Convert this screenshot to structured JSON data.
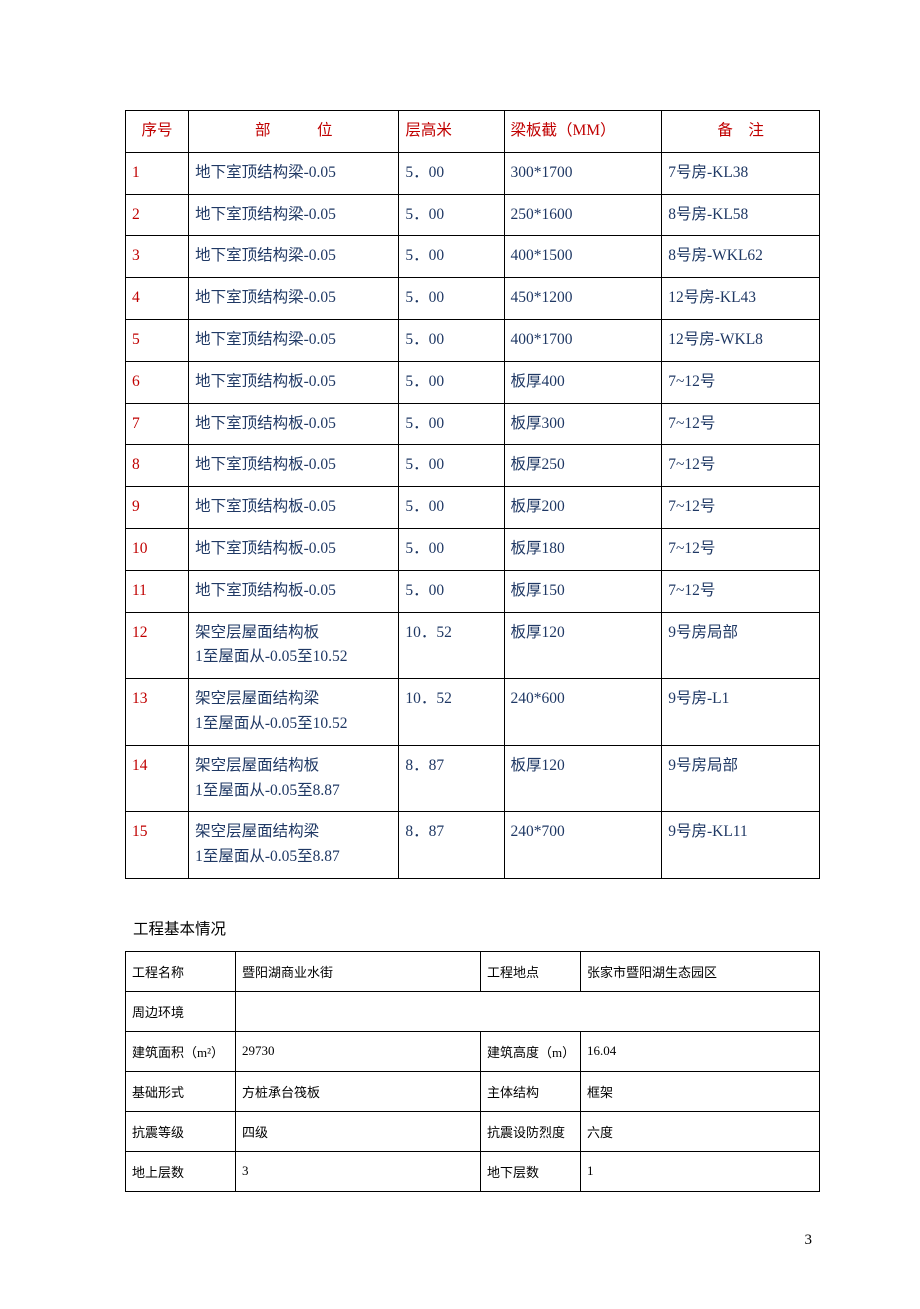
{
  "colors": {
    "header_red": "#c00000",
    "body_blue": "#1f3864",
    "border": "#000000",
    "text_black": "#000000",
    "background": "#ffffff"
  },
  "typography": {
    "main_table_fontsize": 15.5,
    "info_table_fontsize": 13,
    "font_family": "SimSun"
  },
  "mainTable": {
    "headers": {
      "seq": "序号",
      "position": "部　　　位",
      "height": "层高米",
      "section": "梁板截（MM）",
      "note": "备　注"
    },
    "rows": [
      {
        "seq": "1",
        "position": "地下室顶结构梁-0.05",
        "height": "5．00",
        "section": "300*1700",
        "note": "7号房-KL38"
      },
      {
        "seq": "2",
        "position": "地下室顶结构梁-0.05",
        "height": "5．00",
        "section": "250*1600",
        "note": "8号房-KL58"
      },
      {
        "seq": "3",
        "position": "地下室顶结构梁-0.05",
        "height": "5．00",
        "section": "400*1500",
        "note": "8号房-WKL62"
      },
      {
        "seq": "4",
        "position": "地下室顶结构梁-0.05",
        "height": "5．00",
        "section": "450*1200",
        "note": "12号房-KL43"
      },
      {
        "seq": "5",
        "position": "地下室顶结构梁-0.05",
        "height": "5．00",
        "section": "400*1700",
        "note": "12号房-WKL8"
      },
      {
        "seq": "6",
        "position": "地下室顶结构板-0.05",
        "height": "5．00",
        "section": "板厚400",
        "note": "7~12号"
      },
      {
        "seq": "7",
        "position": "地下室顶结构板-0.05",
        "height": "5．00",
        "section": "板厚300",
        "note": "7~12号"
      },
      {
        "seq": "8",
        "position": "地下室顶结构板-0.05",
        "height": "5．00",
        "section": "板厚250",
        "note": "7~12号"
      },
      {
        "seq": "9",
        "position": "地下室顶结构板-0.05",
        "height": "5．00",
        "section": "板厚200",
        "note": "7~12号"
      },
      {
        "seq": "10",
        "position": "地下室顶结构板-0.05",
        "height": "5．00",
        "section": "板厚180",
        "note": "7~12号"
      },
      {
        "seq": "11",
        "position": "地下室顶结构板-0.05",
        "height": "5．00",
        "section": "板厚150",
        "note": "7~12号"
      },
      {
        "seq": "12",
        "position": "架空层屋面结构板\n1至屋面从-0.05至10.52",
        "height": "10．52",
        "section": "板厚120",
        "note": "9号房局部"
      },
      {
        "seq": "13",
        "position": "架空层屋面结构梁\n1至屋面从-0.05至10.52",
        "height": "10．52",
        "section": "240*600",
        "note": "9号房-L1"
      },
      {
        "seq": "14",
        "position": "架空层屋面结构板\n1至屋面从-0.05至8.87",
        "height": "8．87",
        "section": "板厚120",
        "note": "9号房局部"
      },
      {
        "seq": "15",
        "position": "架空层屋面结构梁\n1至屋面从-0.05至8.87",
        "height": "8．87",
        "section": "240*700",
        "note": "9号房-KL11"
      }
    ]
  },
  "sectionTitle": "工程基本情况",
  "infoTable": {
    "rows": [
      {
        "label1": "工程名称",
        "value1": "暨阳湖商业水街",
        "label2": "工程地点",
        "value2": "张家市暨阳湖生态园区"
      },
      {
        "label1": "周边环境",
        "value1": "",
        "label2": "",
        "value2": "",
        "colspan": true
      },
      {
        "label1": "建筑面积（m²）",
        "value1": "29730",
        "label2": "建筑高度（m）",
        "value2": "16.04"
      },
      {
        "label1": "基础形式",
        "value1": "方桩承台筏板",
        "label2": "主体结构",
        "value2": "框架"
      },
      {
        "label1": "抗震等级",
        "value1": "四级",
        "label2": "抗震设防烈度",
        "value2": "六度"
      },
      {
        "label1": "地上层数",
        "value1": "3",
        "label2": "地下层数",
        "value2": "1"
      }
    ]
  },
  "pageNumber": "3"
}
